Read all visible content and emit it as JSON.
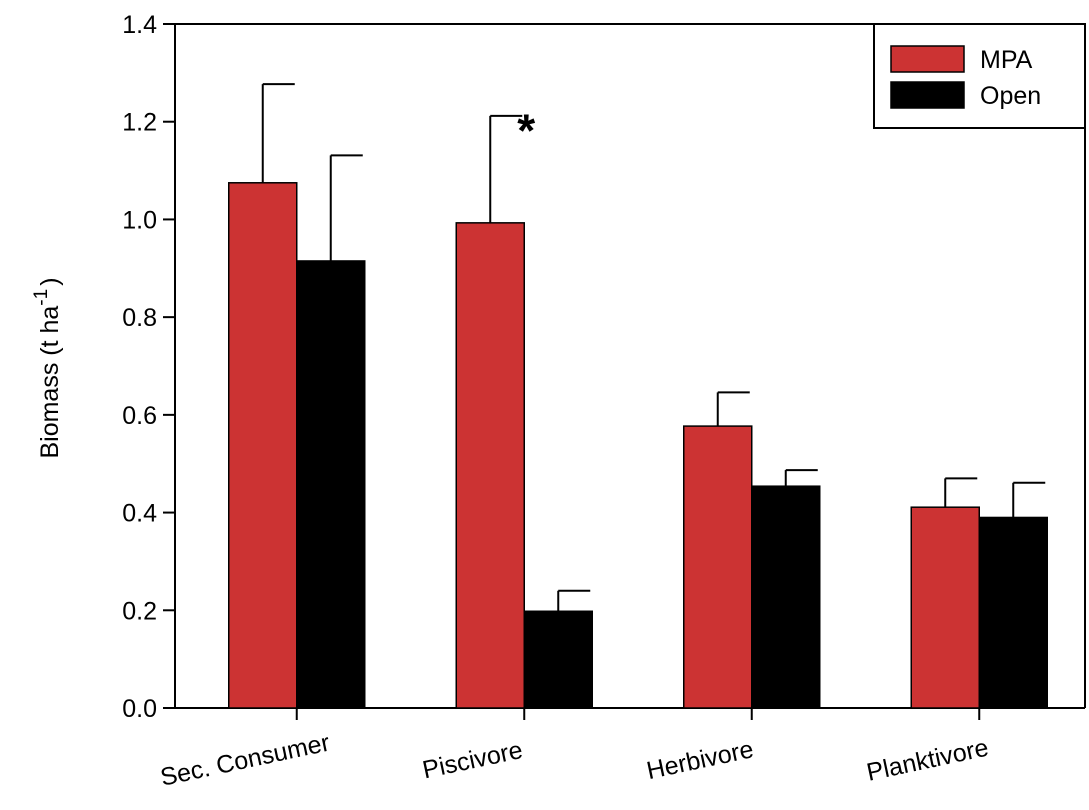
{
  "chart_data": {
    "type": "bar",
    "categories": [
      "Sec. Consumer",
      "Piscivore",
      "Herbivore",
      "Planktivore"
    ],
    "series": [
      {
        "name": "MPA",
        "color": "#cc3333",
        "values": [
          1.075,
          0.993,
          0.577,
          0.411
        ],
        "errors": [
          0.202,
          0.219,
          0.069,
          0.059
        ]
      },
      {
        "name": "Open",
        "color": "#000000",
        "values": [
          0.915,
          0.198,
          0.454,
          0.39
        ],
        "errors": [
          0.216,
          0.042,
          0.033,
          0.071
        ]
      }
    ],
    "ylabel": "Biomass (t ha",
    "ylabel_sup": "-1",
    "ylabel_close": ")",
    "xlabel": "",
    "ylim": [
      0,
      1.4
    ],
    "yticks": [
      "0.0",
      "0.2",
      "0.4",
      "0.6",
      "0.8",
      "1.0",
      "1.2",
      "1.4"
    ],
    "legend_position": "top-right",
    "annotations": [
      {
        "text": "*",
        "category": "Piscivore"
      }
    ],
    "grid": false
  }
}
